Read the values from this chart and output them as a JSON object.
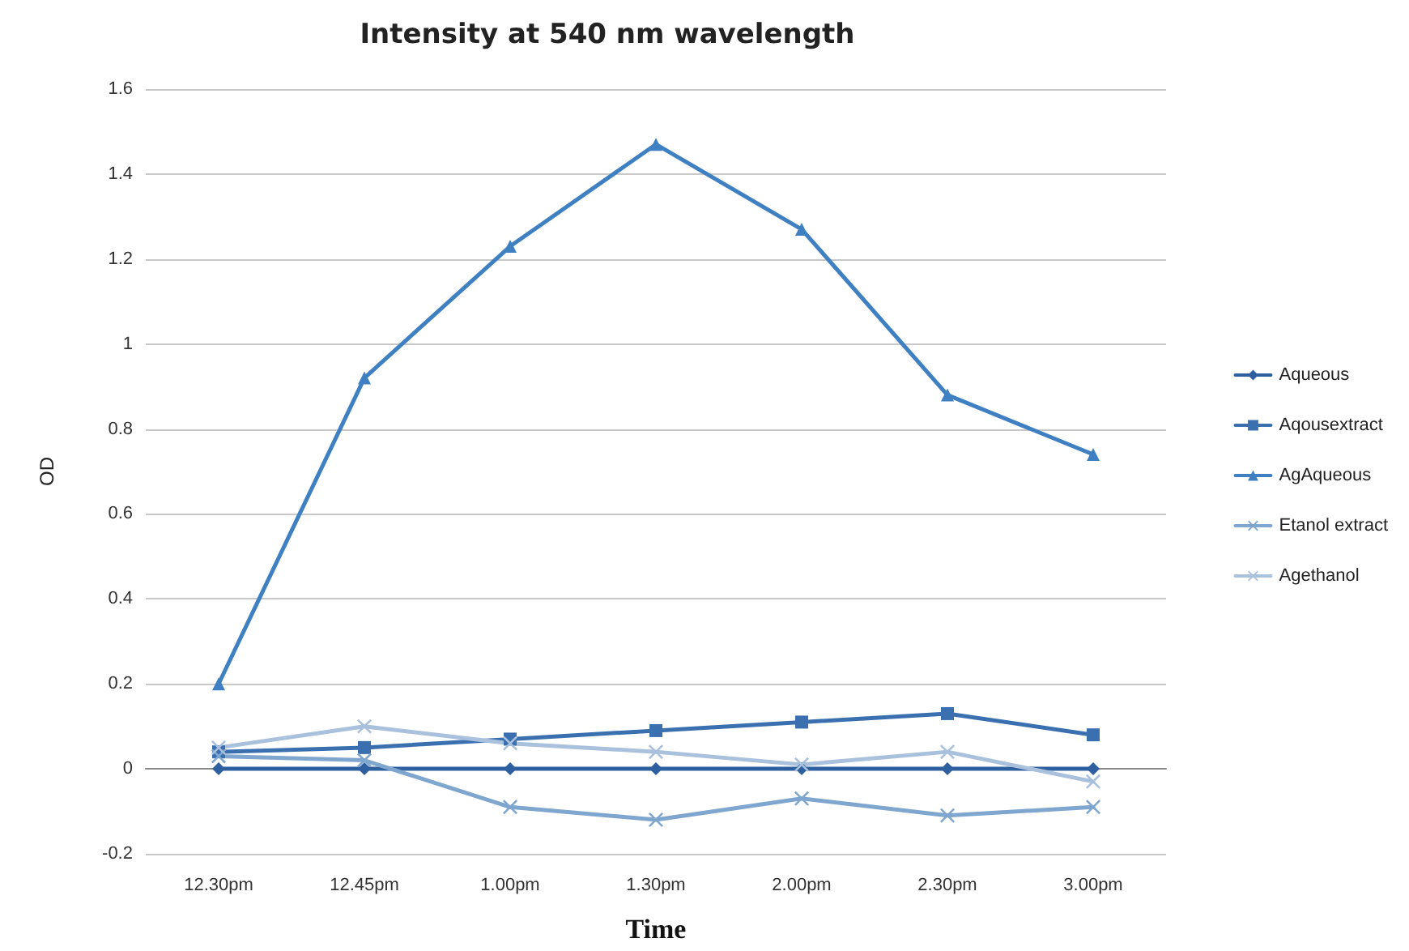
{
  "chart_data": {
    "type": "line",
    "title": "Intensity at 540 nm wavelength",
    "xlabel": "Time",
    "ylabel": "OD",
    "categories": [
      "12.30pm",
      "12.45pm",
      "1.00pm",
      "1.30pm",
      "2.00pm",
      "2.30pm",
      "3.00pm"
    ],
    "series": [
      {
        "name": "Aqueous",
        "color": "#2e5f9e",
        "marker": "diamond",
        "values": [
          0,
          0,
          0,
          0,
          0,
          0,
          0
        ]
      },
      {
        "name": "Aqousextract",
        "color": "#3a70b0",
        "marker": "square",
        "values": [
          0.04,
          0.05,
          0.07,
          0.09,
          0.11,
          0.13,
          0.08
        ]
      },
      {
        "name": "AgAqueous",
        "color": "#3f80c2",
        "marker": "triangle",
        "values": [
          0.2,
          0.92,
          1.23,
          1.47,
          1.27,
          0.88,
          0.74
        ]
      },
      {
        "name": "Etanol extract",
        "color": "#7fa6cf",
        "marker": "cross",
        "values": [
          0.03,
          0.02,
          -0.09,
          -0.12,
          -0.07,
          -0.11,
          -0.09
        ]
      },
      {
        "name": "Agethanol",
        "color": "#a9c1dd",
        "marker": "cross",
        "values": [
          0.05,
          0.1,
          0.06,
          0.04,
          0.01,
          0.04,
          -0.03
        ]
      }
    ],
    "ylim": [
      -0.2,
      1.6
    ],
    "yticks": [
      -0.2,
      0,
      0.2,
      0.4,
      0.6,
      0.8,
      1,
      1.2,
      1.4,
      1.6
    ],
    "grid": "y",
    "legend": "right",
    "line_style": "solid"
  }
}
